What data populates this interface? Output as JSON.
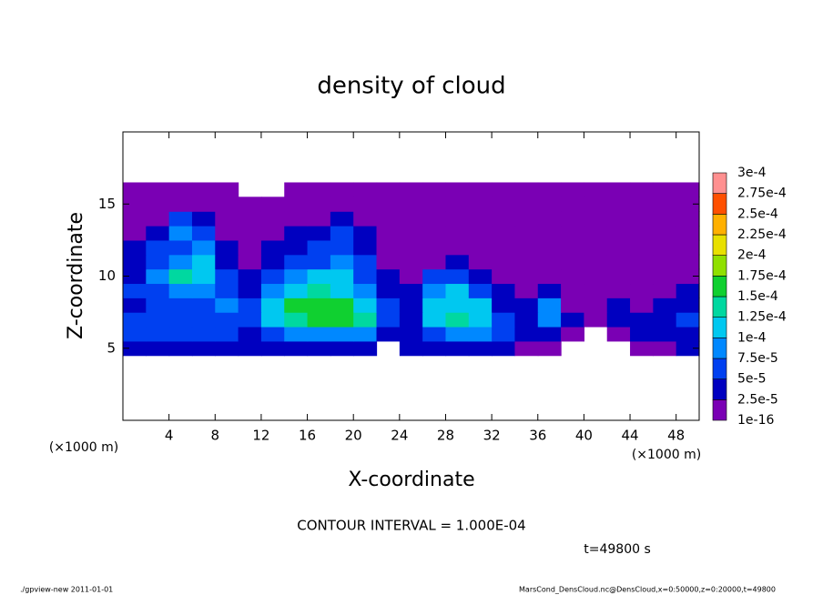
{
  "chart_data": {
    "type": "heatmap",
    "title": "density of cloud",
    "x_label": "X-coordinate",
    "y_label": "Z-coordinate",
    "x_unit": "(×1000 m)",
    "y_unit": "(×1000 m)",
    "contour_note": "CONTOUR INTERVAL = 1.000E-04",
    "time_note": "t=49800 s",
    "footer_left": "./gpview-new   2011-01-01",
    "footer_right": "MarsCond_DensCloud.nc@DensCloud,x=0:50000,z=0:20000,t=49800",
    "xlim": [
      0,
      50
    ],
    "ylim": [
      0,
      20
    ],
    "xticks": [
      4,
      8,
      12,
      16,
      20,
      24,
      28,
      32,
      36,
      40,
      44,
      48
    ],
    "yticks": [
      5,
      10,
      15
    ],
    "x": [
      1,
      3,
      5,
      7,
      9,
      11,
      13,
      15,
      17,
      19,
      21,
      23,
      25,
      27,
      29,
      31,
      33,
      35,
      37,
      39,
      41,
      43,
      45,
      47,
      49
    ],
    "z": [
      5,
      6,
      7,
      8,
      9,
      10,
      11,
      12,
      13,
      14,
      15,
      16
    ],
    "values": [
      [
        3e-05,
        4e-05,
        4e-05,
        4e-05,
        3e-05,
        3e-05,
        3e-05,
        4e-05,
        4e-05,
        4e-05,
        4e-05,
        null,
        3e-05,
        3e-05,
        4e-05,
        4e-05,
        3e-05,
        2e-05,
        2e-05,
        null,
        null,
        null,
        2e-05,
        2e-05,
        3e-05
      ],
      [
        5e-05,
        6e-05,
        6e-05,
        5e-05,
        5e-05,
        4e-05,
        6e-05,
        8e-05,
        9e-05,
        9e-05,
        8e-05,
        4e-05,
        4e-05,
        7e-05,
        9e-05,
        8e-05,
        5e-05,
        3e-05,
        4e-05,
        2e-05,
        null,
        2e-05,
        3e-05,
        3e-05,
        4e-05
      ],
      [
        6e-05,
        7e-05,
        6e-05,
        6e-05,
        7e-05,
        6e-05,
        0.00012,
        0.00014,
        0.00015,
        0.00015,
        0.00013,
        6e-05,
        4e-05,
        0.00011,
        0.00013,
        0.00012,
        5e-05,
        3e-05,
        9e-05,
        3e-05,
        2e-05,
        3e-05,
        3e-05,
        4e-05,
        5e-05
      ],
      [
        4e-05,
        5e-05,
        5e-05,
        7e-05,
        8e-05,
        5e-05,
        0.00011,
        0.00015,
        0.00016,
        0.00015,
        0.00012,
        5e-05,
        4e-05,
        0.0001,
        0.00012,
        0.00011,
        4e-05,
        3e-05,
        8e-05,
        2e-05,
        2e-05,
        3e-05,
        2e-05,
        3e-05,
        4e-05
      ],
      [
        5e-05,
        6e-05,
        8e-05,
        9e-05,
        6e-05,
        4e-05,
        8e-05,
        0.00012,
        0.00013,
        0.00012,
        9e-05,
        4e-05,
        3e-05,
        9e-05,
        0.00011,
        7e-05,
        3e-05,
        2e-05,
        3e-05,
        2e-05,
        2e-05,
        2e-05,
        2e-05,
        2e-05,
        3e-05
      ],
      [
        3e-05,
        9e-05,
        0.00014,
        0.00012,
        5e-05,
        3e-05,
        6e-05,
        8e-05,
        0.0001,
        0.0001,
        6e-05,
        3e-05,
        2e-05,
        5e-05,
        6e-05,
        4e-05,
        2e-05,
        1e-05,
        2e-05,
        1e-05,
        1e-05,
        2e-05,
        1e-05,
        2e-05,
        2e-05
      ],
      [
        4e-05,
        5e-05,
        9e-05,
        0.00012,
        4e-05,
        2e-05,
        4e-05,
        5e-05,
        7e-05,
        8e-05,
        5e-05,
        2e-05,
        2e-05,
        2e-05,
        3e-05,
        2e-05,
        1e-05,
        1e-05,
        1e-05,
        1e-05,
        1e-05,
        1e-05,
        1e-05,
        1e-05,
        2e-05
      ],
      [
        3e-05,
        5e-05,
        7e-05,
        9e-05,
        3e-05,
        1e-05,
        3e-05,
        4e-05,
        5e-05,
        7e-05,
        4e-05,
        2e-05,
        1e-05,
        1e-05,
        2e-05,
        2e-05,
        1e-05,
        2e-05,
        1e-05,
        1e-05,
        1e-05,
        1e-05,
        1e-05,
        1e-05,
        1e-05
      ],
      [
        2e-05,
        4e-05,
        8e-05,
        6e-05,
        2e-05,
        1e-05,
        2e-05,
        3e-05,
        3e-05,
        5e-05,
        3e-05,
        2e-05,
        1e-05,
        1e-05,
        2e-05,
        1e-05,
        1e-05,
        1e-05,
        1e-05,
        1e-05,
        1e-05,
        1e-05,
        1e-05,
        2e-05,
        1e-05
      ],
      [
        1e-05,
        2e-05,
        5e-05,
        4e-05,
        1e-05,
        1e-05,
        2e-05,
        2e-05,
        2e-05,
        3e-05,
        2e-05,
        1e-05,
        1e-05,
        1e-05,
        1e-05,
        1e-05,
        1e-05,
        1e-05,
        1e-05,
        1e-05,
        1e-05,
        1e-05,
        1e-05,
        1e-05,
        1e-05
      ],
      [
        1e-05,
        1e-05,
        1e-05,
        1e-05,
        1e-05,
        1e-05,
        1e-05,
        1e-05,
        1e-05,
        1e-05,
        1e-05,
        1e-05,
        1e-05,
        1e-05,
        1e-05,
        1e-05,
        1e-05,
        1e-05,
        1e-05,
        1e-05,
        1e-05,
        1e-05,
        1e-05,
        1e-05,
        1e-05
      ],
      [
        1e-05,
        1e-05,
        1e-05,
        1e-05,
        1e-05,
        null,
        null,
        1e-05,
        1e-05,
        1e-05,
        1e-05,
        1e-05,
        1e-05,
        1e-05,
        1e-05,
        1e-05,
        1e-05,
        1e-05,
        1e-05,
        1e-05,
        1e-05,
        1e-05,
        1e-05,
        1e-05,
        1e-05
      ]
    ],
    "levels": [
      {
        "value": 1e-16,
        "label": "1e-16"
      },
      {
        "value": 2.5e-05,
        "label": "2.5e-5"
      },
      {
        "value": 5e-05,
        "label": "5e-5"
      },
      {
        "value": 7.5e-05,
        "label": "7.5e-5"
      },
      {
        "value": 0.0001,
        "label": "1e-4"
      },
      {
        "value": 0.000125,
        "label": "1.25e-4"
      },
      {
        "value": 0.00015,
        "label": "1.5e-4"
      },
      {
        "value": 0.000175,
        "label": "1.75e-4"
      },
      {
        "value": 0.0002,
        "label": "2e-4"
      },
      {
        "value": 0.000225,
        "label": "2.25e-4"
      },
      {
        "value": 0.00025,
        "label": "2.5e-4"
      },
      {
        "value": 0.000275,
        "label": "2.75e-4"
      },
      {
        "value": 0.0003,
        "label": "3e-4"
      }
    ],
    "colors": [
      "#7a00b4",
      "#0000c0",
      "#0040f0",
      "#0088ff",
      "#00c8f0",
      "#00d8a0",
      "#10d030",
      "#90e000",
      "#e8e000",
      "#ffb000",
      "#ff5000",
      "#ff9090"
    ]
  }
}
